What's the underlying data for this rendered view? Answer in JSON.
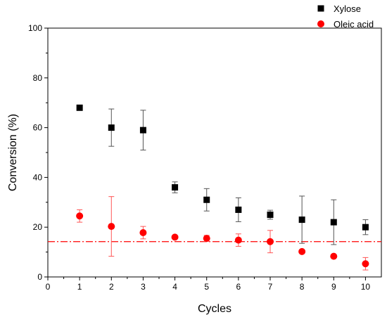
{
  "chart_data": {
    "type": "scatter",
    "title": "",
    "xlabel": "Cycles",
    "ylabel": "Conversion (%)",
    "xlim": [
      0,
      10.5
    ],
    "ylim": [
      0,
      100
    ],
    "xticks": [
      "0",
      "1",
      "2",
      "3",
      "4",
      "5",
      "6",
      "7",
      "8",
      "9",
      "10"
    ],
    "yticks": [
      "0",
      "20",
      "40",
      "60",
      "80",
      "100"
    ],
    "grid": false,
    "legend_position": "top-right",
    "series": [
      {
        "name": "Xylose",
        "marker": "square",
        "color": "#000000",
        "x": [
          1,
          2,
          3,
          4,
          5,
          6,
          7,
          8,
          9,
          10
        ],
        "y": [
          68,
          60,
          59,
          36,
          31,
          27,
          25,
          23,
          22,
          20
        ],
        "error": [
          0,
          7.5,
          8,
          2.2,
          4.5,
          4.8,
          1.8,
          9.5,
          9,
          3
        ]
      },
      {
        "name": "Oleic acid",
        "marker": "circle",
        "color": "#ff0000",
        "x": [
          1,
          2,
          3,
          4,
          5,
          6,
          7,
          8,
          9,
          10
        ],
        "y": [
          24.5,
          20.3,
          17.8,
          16,
          15.5,
          14.8,
          14.2,
          10.2,
          8.3,
          5.3
        ],
        "error": [
          2.5,
          12,
          2.5,
          0,
          1.2,
          2.5,
          4.5,
          0,
          0,
          2.5
        ]
      }
    ],
    "reference_line": {
      "y": 14.2,
      "style": "dashed",
      "color": "#ff0000"
    }
  }
}
